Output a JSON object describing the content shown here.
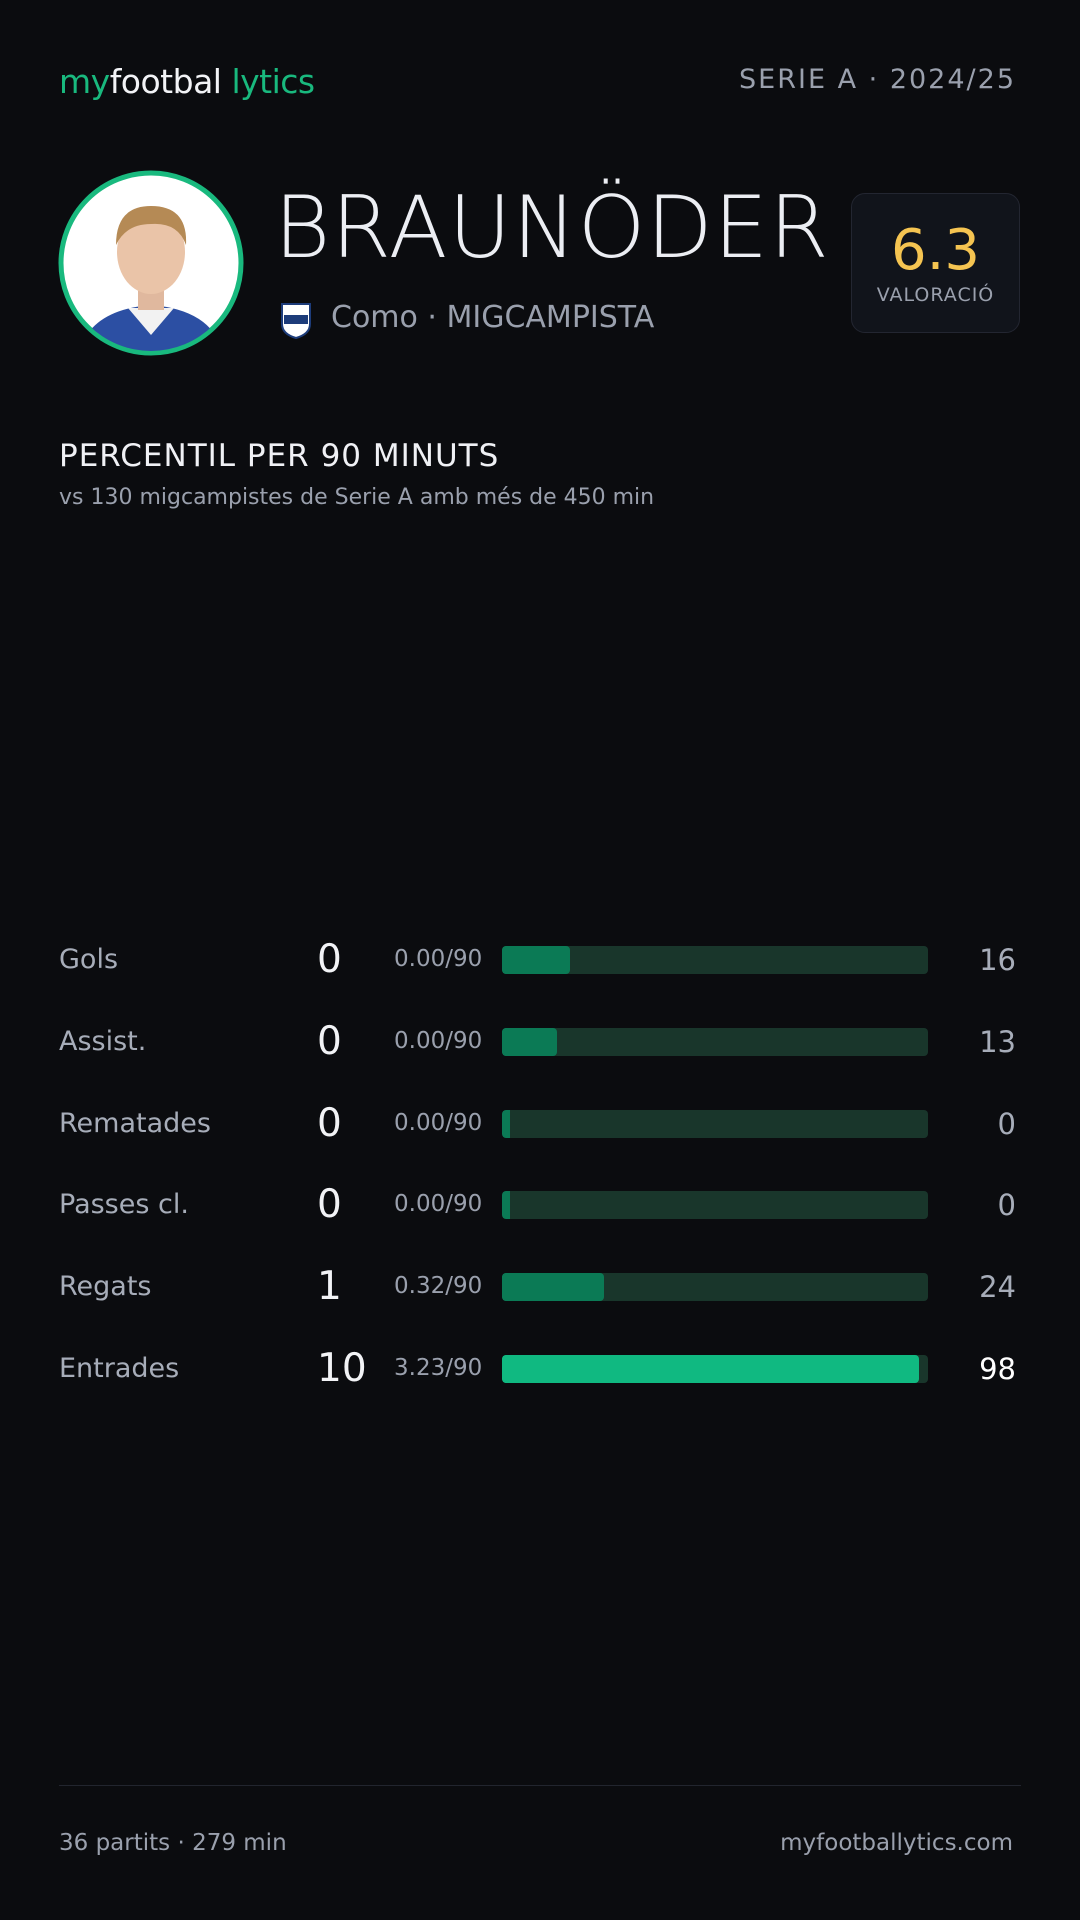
{
  "header": {
    "logo": {
      "part1": "my",
      "part2": "footbal",
      "part3": "lytics"
    },
    "season": "SERIE A · 2024/25"
  },
  "player": {
    "name": "BRAUNÖDER",
    "club_position": "Como · MIGCAMPISTA",
    "rating": 6.3,
    "rating_label": "VALORACIÓ"
  },
  "section": {
    "title": "PERCENTIL PER 90 MINUTS",
    "subtitle": "vs 130 migcampistes de Serie A amb més de 450 min"
  },
  "stats": [
    {
      "label": "Gols",
      "total": 0,
      "per90": "0.00/90",
      "percentile": 16,
      "color": "#0b7a55"
    },
    {
      "label": "Assist.",
      "total": 0,
      "per90": "0.00/90",
      "percentile": 13,
      "color": "#0b7a55"
    },
    {
      "label": "Rematades",
      "total": 0,
      "per90": "0.00/90",
      "percentile": 0,
      "color": "#0b7a55"
    },
    {
      "label": "Passes cl.",
      "total": 0,
      "per90": "0.00/90",
      "percentile": 0,
      "color": "#0b7a55"
    },
    {
      "label": "Regats",
      "total": 1,
      "per90": "0.32/90",
      "percentile": 24,
      "color": "#0b7a55"
    },
    {
      "label": "Entrades",
      "total": 10,
      "per90": "3.23/90",
      "percentile": 98,
      "color": "#10b981"
    }
  ],
  "footer": {
    "left": "36 partits · 279 min",
    "right": "myfootballytics.com"
  }
}
